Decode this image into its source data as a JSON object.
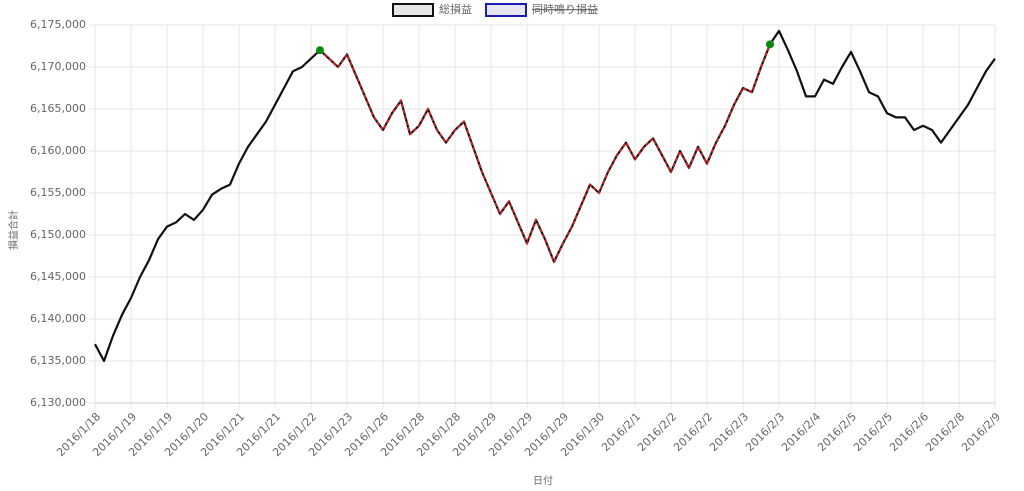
{
  "chart_data": {
    "type": "line",
    "x_label": "日付",
    "y_label": "損益合計",
    "categories": [
      "2016/1/18",
      null,
      null,
      null,
      "2016/1/19",
      null,
      null,
      null,
      "2016/1/19",
      null,
      null,
      null,
      "2016/1/20",
      null,
      null,
      null,
      "2016/1/21",
      null,
      null,
      null,
      "2016/1/21",
      null,
      null,
      null,
      "2016/1/22",
      null,
      null,
      null,
      "2016/1/23",
      null,
      null,
      null,
      "2016/1/26",
      null,
      null,
      null,
      "2016/1/28",
      null,
      null,
      null,
      "2016/1/28",
      null,
      null,
      null,
      "2016/1/29",
      null,
      null,
      null,
      "2016/1/29",
      null,
      null,
      null,
      "2016/1/29",
      null,
      null,
      null,
      "2016/1/30",
      null,
      null,
      null,
      "2016/2/1",
      null,
      null,
      null,
      "2016/2/2",
      null,
      null,
      null,
      "2016/2/2",
      null,
      null,
      null,
      "2016/2/3",
      null,
      null,
      null,
      "2016/2/3",
      null,
      null,
      null,
      "2016/2/4",
      null,
      null,
      null,
      "2016/2/5",
      null,
      null,
      null,
      "2016/2/5",
      null,
      null,
      null,
      "2016/2/6",
      null,
      null,
      null,
      "2016/2/8",
      null,
      null,
      null,
      "2016/2/9"
    ],
    "series": [
      {
        "name": "総損益",
        "color": "#111111",
        "values": [
          6137000,
          6135000,
          6138000,
          6140500,
          6142500,
          6145000,
          6147000,
          6149500,
          6151000,
          6151500,
          6152500,
          6151800,
          6153000,
          6154800,
          6155500,
          6156000,
          6158500,
          6160500,
          6162000,
          6163500,
          6165500,
          6167500,
          6169500,
          6170000,
          6171000,
          6172000,
          6171000,
          6170000,
          6171500,
          6169000,
          6166500,
          6164000,
          6162500,
          6164500,
          6166000,
          6162000,
          6163000,
          6165000,
          6162500,
          6161000,
          6162500,
          6163500,
          6160500,
          6157500,
          6155000,
          6152500,
          6154000,
          6151500,
          6149000,
          6151800,
          6149500,
          6146800,
          6149000,
          6151000,
          6153500,
          6156000,
          6155000,
          6157500,
          6159500,
          6161000,
          6159000,
          6160500,
          6161500,
          6159500,
          6157500,
          6160000,
          6158000,
          6160500,
          6158500,
          6161000,
          6163000,
          6165500,
          6167500,
          6167000,
          6170000,
          6172700,
          6174300,
          6172000,
          6169500,
          6166500,
          6166500,
          6168500,
          6168000,
          6170000,
          6171800,
          6169500,
          6167000,
          6166500,
          6164500,
          6164000,
          6164000,
          6162500,
          6163000,
          6162500,
          6161000,
          6162500,
          6164000,
          6165500,
          6167500,
          6169500,
          6171000
        ]
      },
      {
        "name": "同時鳴り損益",
        "color": "#1a1ab4",
        "hidden": true
      }
    ],
    "highlight": {
      "start": 25,
      "end": 75,
      "color": "#d62020",
      "marker_color": "#0a8a0a"
    },
    "ylim": [
      6130000,
      6175000
    ],
    "yticks": [
      {
        "value": 6130000,
        "label": "6,130,000"
      },
      {
        "value": 6135000,
        "label": "6,135,000"
      },
      {
        "value": 6140000,
        "label": "6,140,000"
      },
      {
        "value": 6145000,
        "label": "6,145,000"
      },
      {
        "value": 6150000,
        "label": "6,150,000"
      },
      {
        "value": 6155000,
        "label": "6,155,000"
      },
      {
        "value": 6160000,
        "label": "6,160,000"
      },
      {
        "value": 6165000,
        "label": "6,165,000"
      },
      {
        "value": 6170000,
        "label": "6,170,000"
      },
      {
        "value": 6175000,
        "label": "6,175,000"
      }
    ],
    "grid": true,
    "legend": "top"
  }
}
